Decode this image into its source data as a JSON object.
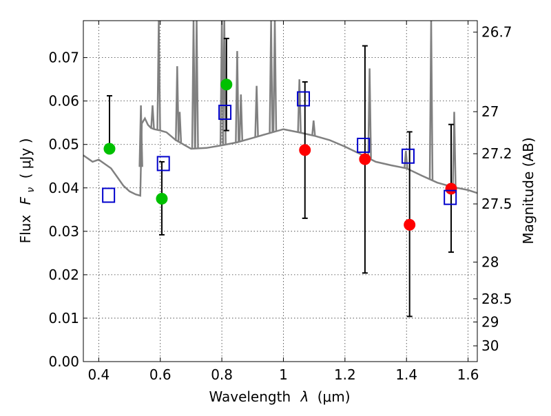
{
  "chart_data": {
    "type": "scatter",
    "xlabel": "Wavelength",
    "xlabel_symbol": "λ",
    "xlabel_unit": "(μm)",
    "ylabel": "Flux",
    "ylabel_symbol": "F",
    "ylabel_subscript": "ν",
    "ylabel_unit": "( μJy )",
    "y2label": "Magnitude (AB)",
    "xlim": [
      0.35,
      1.63
    ],
    "ylim": [
      0.0,
      0.0785
    ],
    "grid": true,
    "x_ticks": [
      0.4,
      0.6,
      0.8,
      1.0,
      1.2,
      1.4,
      1.6
    ],
    "x_tick_labels": [
      "0.4",
      "0.6",
      "0.8",
      "1",
      "1.2",
      "1.4",
      "1.6"
    ],
    "y_ticks": [
      0.0,
      0.01,
      0.02,
      0.03,
      0.04,
      0.05,
      0.06,
      0.07
    ],
    "y_tick_labels": [
      "0.00",
      "0.01",
      "0.02",
      "0.03",
      "0.04",
      "0.05",
      "0.06",
      "0.07"
    ],
    "y2_ticks": [
      {
        "label": "26.7",
        "value": 26.7
      },
      {
        "label": "27",
        "value": 27
      },
      {
        "label": "27.2",
        "value": 27.2
      },
      {
        "label": "27.5",
        "value": 27.5
      },
      {
        "label": "28",
        "value": 28
      },
      {
        "label": "28.5",
        "value": 28.5
      },
      {
        "label": "29",
        "value": 29
      },
      {
        "label": "30",
        "value": 30
      }
    ],
    "series": [
      {
        "marker": "circle",
        "color": "#00c000",
        "x": [
          0.435,
          0.605,
          0.815
        ],
        "y": [
          0.049,
          0.0375,
          0.0638
        ],
        "yerr_low": [
          null,
          0.0292,
          0.0532
        ],
        "yerr_high": [
          0.0612,
          0.046,
          0.0744
        ]
      },
      {
        "marker": "circle",
        "color": "#ff0000",
        "x": [
          1.07,
          1.265,
          1.41,
          1.545
        ],
        "y": [
          0.0487,
          0.0466,
          0.0315,
          0.0398
        ],
        "yerr_low": [
          0.033,
          0.0204,
          0.0104,
          0.0252
        ],
        "yerr_high": [
          0.0644,
          0.0727,
          0.0529,
          0.0546
        ]
      },
      {
        "marker": "square-open",
        "color": "#0000cc",
        "x": [
          0.432,
          0.61,
          0.81,
          1.065,
          1.26,
          1.405,
          1.542
        ],
        "y": [
          0.0383,
          0.0456,
          0.0574,
          0.0605,
          0.0498,
          0.0473,
          0.0378
        ]
      }
    ],
    "model_spectrum": {
      "color": "#808080",
      "x": [
        0.35,
        0.36,
        0.38,
        0.4,
        0.42,
        0.44,
        0.46,
        0.48,
        0.5,
        0.52,
        0.535,
        0.54,
        0.55,
        0.56,
        0.57,
        0.58,
        0.6,
        0.62,
        0.65,
        0.7,
        0.75,
        0.8,
        0.85,
        0.9,
        0.95,
        1.0,
        1.05,
        1.1,
        1.15,
        1.2,
        1.25,
        1.3,
        1.35,
        1.4,
        1.45,
        1.5,
        1.55,
        1.6,
        1.63
      ],
      "y": [
        0.0475,
        0.047,
        0.046,
        0.0465,
        0.0455,
        0.0445,
        0.0425,
        0.0405,
        0.0392,
        0.0385,
        0.0382,
        0.0548,
        0.056,
        0.0545,
        0.0538,
        0.0535,
        0.0532,
        0.0528,
        0.051,
        0.049,
        0.0492,
        0.0498,
        0.0505,
        0.0515,
        0.0525,
        0.0535,
        0.0528,
        0.052,
        0.051,
        0.0495,
        0.0478,
        0.046,
        0.0452,
        0.0445,
        0.0428,
        0.0412,
        0.0402,
        0.0395,
        0.0388
      ],
      "lines": [
        {
          "x": 0.537,
          "peak": 0.059
        },
        {
          "x": 0.575,
          "peak": 0.059
        },
        {
          "x": 0.595,
          "peak": 0.0785
        },
        {
          "x": 0.655,
          "peak": 0.068
        },
        {
          "x": 0.663,
          "peak": 0.0575
        },
        {
          "x": 0.708,
          "peak": 0.0785
        },
        {
          "x": 0.718,
          "peak": 0.0785
        },
        {
          "x": 0.8,
          "peak": 0.0785
        },
        {
          "x": 0.808,
          "peak": 0.0785
        },
        {
          "x": 0.85,
          "peak": 0.0715
        },
        {
          "x": 0.862,
          "peak": 0.0615
        },
        {
          "x": 0.913,
          "peak": 0.0635
        },
        {
          "x": 0.96,
          "peak": 0.0785
        },
        {
          "x": 0.972,
          "peak": 0.0785
        },
        {
          "x": 1.052,
          "peak": 0.065
        },
        {
          "x": 1.098,
          "peak": 0.0555
        },
        {
          "x": 1.28,
          "peak": 0.0675
        },
        {
          "x": 1.398,
          "peak": 0.0485
        },
        {
          "x": 1.48,
          "peak": 0.0785
        },
        {
          "x": 1.555,
          "peak": 0.0575
        }
      ]
    }
  }
}
